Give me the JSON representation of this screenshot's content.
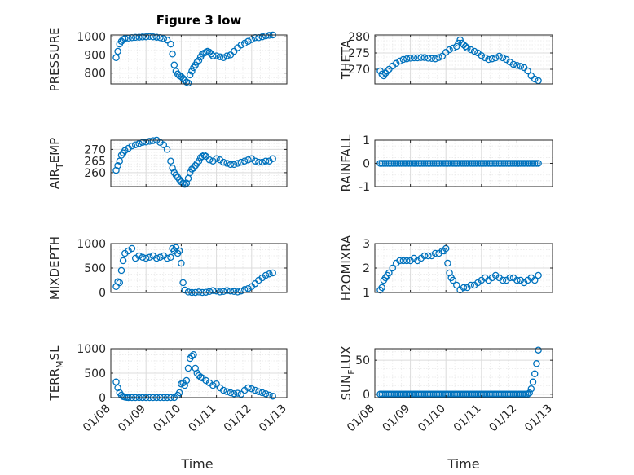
{
  "figure": {
    "title": "Figure 3 low",
    "marker_color": "#0072BD"
  },
  "chart_data": [
    {
      "type": "scatter",
      "ylabel": "PRESSURE",
      "xlabel": "",
      "ylim": [
        740,
        1010
      ],
      "yticks": [
        800,
        900,
        1000
      ],
      "xlim": [
        0,
        5
      ],
      "xticks": [
        0,
        1,
        2,
        3,
        4,
        5
      ],
      "x": [
        0.15,
        0.2,
        0.25,
        0.3,
        0.35,
        0.4,
        0.5,
        0.6,
        0.7,
        0.8,
        0.9,
        1.0,
        1.1,
        1.2,
        1.3,
        1.4,
        1.5,
        1.6,
        1.7,
        1.75,
        1.8,
        1.85,
        1.9,
        1.95,
        2.0,
        2.05,
        2.1,
        2.15,
        2.2,
        2.25,
        2.3,
        2.35,
        2.4,
        2.45,
        2.5,
        2.55,
        2.6,
        2.65,
        2.7,
        2.75,
        2.8,
        2.85,
        2.9,
        3.0,
        3.1,
        3.2,
        3.3,
        3.4,
        3.5,
        3.6,
        3.7,
        3.8,
        3.9,
        4.0,
        4.1,
        4.2,
        4.3,
        4.4,
        4.5,
        4.6
      ],
      "y": [
        885,
        920,
        960,
        975,
        985,
        990,
        993,
        995,
        997,
        998,
        999,
        1000,
        1002,
        1000,
        998,
        995,
        990,
        982,
        960,
        905,
        845,
        810,
        795,
        785,
        780,
        770,
        760,
        750,
        745,
        790,
        810,
        830,
        845,
        860,
        870,
        890,
        905,
        910,
        915,
        920,
        915,
        905,
        895,
        895,
        890,
        885,
        895,
        900,
        920,
        940,
        955,
        965,
        975,
        985,
        995,
        995,
        1000,
        1005,
        1008,
        1010
      ]
    },
    {
      "type": "scatter",
      "ylabel": "THETA",
      "xlabel": "",
      "ylim": [
        265.5,
        280.5
      ],
      "yticks": [
        270,
        275,
        280
      ],
      "xlim": [
        0,
        5
      ],
      "xticks": [
        0,
        1,
        2,
        3,
        4,
        5
      ],
      "x": [
        0.15,
        0.2,
        0.25,
        0.3,
        0.35,
        0.4,
        0.5,
        0.6,
        0.7,
        0.8,
        0.9,
        1.0,
        1.1,
        1.2,
        1.3,
        1.4,
        1.5,
        1.6,
        1.7,
        1.8,
        1.9,
        2.0,
        2.1,
        2.2,
        2.3,
        2.35,
        2.4,
        2.45,
        2.5,
        2.55,
        2.6,
        2.7,
        2.8,
        2.9,
        3.0,
        3.1,
        3.2,
        3.3,
        3.4,
        3.5,
        3.6,
        3.7,
        3.8,
        3.9,
        4.0,
        4.1,
        4.2,
        4.3,
        4.4,
        4.5,
        4.6
      ],
      "y": [
        269.5,
        268.5,
        268.0,
        268.8,
        269.5,
        270.0,
        271.0,
        271.8,
        272.5,
        273.0,
        273.2,
        273.4,
        273.5,
        273.5,
        273.6,
        273.6,
        273.4,
        273.3,
        273.2,
        273.6,
        274.0,
        275.2,
        276.0,
        276.5,
        277.0,
        278.0,
        279.0,
        278.0,
        277.5,
        277.0,
        276.5,
        276.0,
        275.5,
        275.0,
        274.2,
        273.5,
        273.0,
        273.2,
        273.5,
        274.0,
        273.5,
        273.0,
        272.2,
        271.5,
        271.2,
        270.9,
        270.5,
        269.5,
        268.0,
        267.0,
        266.5
      ]
    },
    {
      "type": "scatter",
      "ylabel": "AIR_TEMP",
      "xlabel": "",
      "ylim": [
        254,
        274
      ],
      "yticks": [
        260,
        265,
        270
      ],
      "xlim": [
        0,
        5
      ],
      "xticks": [
        0,
        1,
        2,
        3,
        4,
        5
      ],
      "x": [
        0.15,
        0.2,
        0.25,
        0.3,
        0.35,
        0.4,
        0.5,
        0.6,
        0.7,
        0.8,
        0.9,
        1.0,
        1.1,
        1.2,
        1.3,
        1.4,
        1.5,
        1.6,
        1.7,
        1.75,
        1.8,
        1.85,
        1.9,
        1.95,
        2.0,
        2.05,
        2.1,
        2.15,
        2.2,
        2.25,
        2.3,
        2.35,
        2.4,
        2.45,
        2.5,
        2.55,
        2.6,
        2.65,
        2.7,
        2.8,
        2.9,
        3.0,
        3.1,
        3.2,
        3.3,
        3.4,
        3.5,
        3.6,
        3.7,
        3.8,
        3.9,
        4.0,
        4.1,
        4.2,
        4.3,
        4.4,
        4.5,
        4.6
      ],
      "y": [
        261,
        263,
        265,
        267.5,
        268.5,
        269.5,
        270.5,
        271.5,
        272,
        272.5,
        273,
        273.2,
        273.5,
        273.8,
        274,
        273,
        272,
        270,
        265,
        262,
        260,
        259,
        258,
        257,
        256,
        255.5,
        255,
        255.5,
        257.5,
        260,
        261.5,
        262,
        263,
        264,
        265,
        266.5,
        267,
        267.5,
        267,
        265.5,
        265,
        266,
        265.5,
        264.5,
        264,
        263.5,
        263.5,
        264,
        264.5,
        265,
        265.5,
        266,
        265,
        264.5,
        264.5,
        265,
        265,
        266
      ]
    },
    {
      "type": "scatter",
      "ylabel": "RAINFALL",
      "xlabel": "",
      "ylim": [
        -1,
        1
      ],
      "yticks": [
        -1,
        0,
        1
      ],
      "xlim": [
        0,
        5
      ],
      "xticks": [
        0,
        1,
        2,
        3,
        4,
        5
      ],
      "x_start": 0.15,
      "x_end": 4.6,
      "constant_value": 0
    },
    {
      "type": "scatter",
      "ylabel": "MIXDEPTH",
      "xlabel": "",
      "ylim": [
        0,
        1000
      ],
      "yticks": [
        0,
        500,
        1000
      ],
      "xlim": [
        0,
        5
      ],
      "xticks": [
        0,
        1,
        2,
        3,
        4,
        5
      ],
      "x": [
        0.15,
        0.2,
        0.25,
        0.3,
        0.35,
        0.4,
        0.5,
        0.6,
        0.7,
        0.8,
        0.9,
        1.0,
        1.1,
        1.2,
        1.3,
        1.4,
        1.5,
        1.6,
        1.7,
        1.75,
        1.8,
        1.85,
        1.9,
        1.95,
        2.0,
        2.05,
        2.1,
        2.2,
        2.3,
        2.4,
        2.5,
        2.6,
        2.7,
        2.8,
        2.9,
        3.0,
        3.1,
        3.2,
        3.3,
        3.4,
        3.5,
        3.6,
        3.7,
        3.8,
        3.9,
        4.0,
        4.1,
        4.2,
        4.3,
        4.4,
        4.5,
        4.6
      ],
      "y": [
        120,
        220,
        200,
        450,
        650,
        800,
        850,
        900,
        700,
        750,
        720,
        700,
        720,
        750,
        700,
        720,
        750,
        700,
        720,
        900,
        850,
        920,
        800,
        850,
        600,
        200,
        50,
        10,
        0,
        0,
        10,
        0,
        5,
        20,
        40,
        30,
        10,
        20,
        40,
        30,
        20,
        10,
        30,
        60,
        80,
        120,
        180,
        250,
        300,
        350,
        380,
        400
      ]
    },
    {
      "type": "scatter",
      "ylabel": "H2OMIXRA",
      "xlabel": "",
      "ylim": [
        1,
        3
      ],
      "yticks": [
        1,
        2,
        3
      ],
      "xlim": [
        0,
        5
      ],
      "xticks": [
        0,
        1,
        2,
        3,
        4,
        5
      ],
      "x": [
        0.15,
        0.2,
        0.25,
        0.3,
        0.35,
        0.4,
        0.5,
        0.6,
        0.7,
        0.8,
        0.9,
        1.0,
        1.1,
        1.2,
        1.3,
        1.4,
        1.5,
        1.6,
        1.7,
        1.8,
        1.9,
        1.95,
        2.0,
        2.05,
        2.1,
        2.15,
        2.2,
        2.3,
        2.4,
        2.5,
        2.6,
        2.7,
        2.8,
        2.9,
        3.0,
        3.1,
        3.2,
        3.3,
        3.4,
        3.5,
        3.6,
        3.7,
        3.8,
        3.9,
        4.0,
        4.1,
        4.2,
        4.3,
        4.4,
        4.5,
        4.6
      ],
      "y": [
        1.1,
        1.2,
        1.5,
        1.6,
        1.7,
        1.8,
        2.0,
        2.2,
        2.3,
        2.3,
        2.3,
        2.3,
        2.4,
        2.3,
        2.4,
        2.5,
        2.5,
        2.5,
        2.6,
        2.6,
        2.7,
        2.7,
        2.8,
        2.2,
        1.8,
        1.6,
        1.5,
        1.3,
        1.1,
        1.2,
        1.2,
        1.3,
        1.3,
        1.4,
        1.5,
        1.6,
        1.5,
        1.6,
        1.7,
        1.6,
        1.5,
        1.5,
        1.6,
        1.6,
        1.5,
        1.5,
        1.4,
        1.5,
        1.6,
        1.5,
        1.7
      ]
    },
    {
      "type": "scatter",
      "ylabel": "TERR_MSL",
      "xlabel": "Time",
      "ylim": [
        0,
        1000
      ],
      "yticks": [
        0,
        500,
        1000
      ],
      "xlim": [
        0,
        5
      ],
      "xticks": [
        0,
        1,
        2,
        3,
        4,
        5
      ],
      "xticklabels": [
        "01/08",
        "01/09",
        "01/10",
        "01/11",
        "01/12",
        "01/13"
      ],
      "x": [
        0.15,
        0.2,
        0.25,
        0.3,
        0.35,
        0.4,
        0.45,
        0.5,
        0.6,
        0.7,
        0.8,
        0.9,
        1.0,
        1.1,
        1.2,
        1.3,
        1.4,
        1.5,
        1.6,
        1.7,
        1.8,
        1.9,
        1.95,
        2.0,
        2.05,
        2.1,
        2.15,
        2.2,
        2.25,
        2.3,
        2.35,
        2.4,
        2.45,
        2.5,
        2.55,
        2.6,
        2.7,
        2.8,
        2.9,
        3.0,
        3.1,
        3.2,
        3.3,
        3.4,
        3.5,
        3.6,
        3.7,
        3.8,
        3.9,
        4.0,
        4.1,
        4.2,
        4.3,
        4.4,
        4.5,
        4.6
      ],
      "y": [
        320,
        200,
        100,
        50,
        20,
        10,
        5,
        0,
        0,
        0,
        0,
        0,
        0,
        0,
        0,
        0,
        0,
        0,
        0,
        0,
        0,
        50,
        100,
        280,
        300,
        250,
        350,
        600,
        800,
        850,
        880,
        600,
        500,
        450,
        420,
        400,
        350,
        300,
        250,
        280,
        200,
        150,
        120,
        100,
        80,
        90,
        70,
        150,
        200,
        180,
        150,
        120,
        100,
        80,
        50,
        30
      ]
    },
    {
      "type": "scatter",
      "ylabel": "SUN_FLUX",
      "xlabel": "Time",
      "ylim": [
        -5,
        67
      ],
      "yticks": [
        0,
        50
      ],
      "xlim": [
        0,
        5
      ],
      "xticks": [
        0,
        1,
        2,
        3,
        4,
        5
      ],
      "xticklabels": [
        "01/08",
        "01/09",
        "01/10",
        "01/11",
        "01/12",
        "01/13"
      ],
      "x_start": 0.15,
      "x_end": 4.3,
      "x": [
        4.35,
        4.4,
        4.45,
        4.5,
        4.55,
        4.6
      ],
      "y": [
        2,
        8,
        18,
        30,
        45,
        65
      ]
    }
  ]
}
